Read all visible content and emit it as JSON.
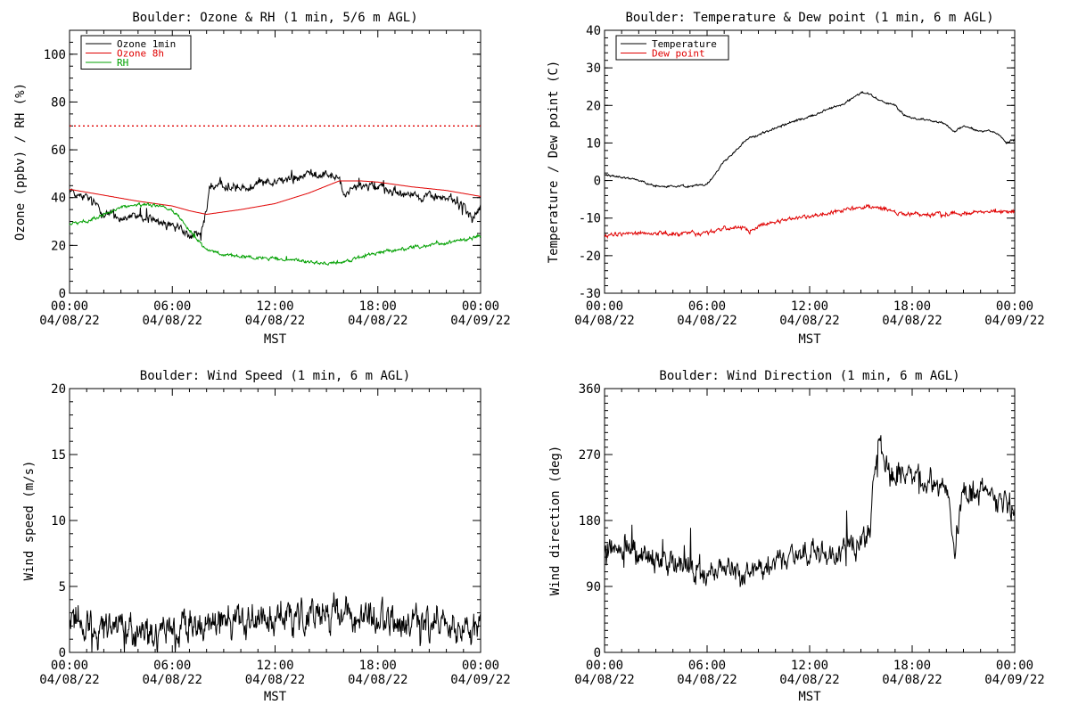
{
  "figure": {
    "x_axis_label": "MST"
  },
  "chart_data": [
    {
      "id": "ozone",
      "type": "line",
      "title": "Boulder: Ozone & RH (1 min, 5/6 m AGL)",
      "ylabel": "Ozone (ppbv) / RH (%)",
      "xlabel": "MST",
      "xlim": [
        "04/08/22 00:00",
        "04/09/22 00:00"
      ],
      "x_ticks": [
        {
          "time": "00:00",
          "date": "04/08/22"
        },
        {
          "time": "06:00",
          "date": "04/08/22"
        },
        {
          "time": "12:00",
          "date": "04/08/22"
        },
        {
          "time": "18:00",
          "date": "04/08/22"
        },
        {
          "time": "00:00",
          "date": "04/09/22"
        }
      ],
      "ylim": [
        0,
        110
      ],
      "y_ticks": [
        0,
        20,
        40,
        60,
        80,
        100
      ],
      "y_minor_step": 5,
      "legend": "top-left",
      "reference_line": {
        "y": 70,
        "color": "#e00000",
        "style": "dotted"
      },
      "series": [
        {
          "name": "Ozone 1min",
          "color": "#000000",
          "noise": 1.2,
          "spike_prob": 0.06,
          "spike_amp": 4,
          "points": [
            [
              "00:00",
              43
            ],
            [
              "01:00",
              40
            ],
            [
              "02:00",
              34
            ],
            [
              "03:00",
              31
            ],
            [
              "04:00",
              33
            ],
            [
              "05:00",
              30
            ],
            [
              "06:00",
              28
            ],
            [
              "06:30",
              27
            ],
            [
              "07:00",
              24
            ],
            [
              "07:40",
              25
            ],
            [
              "08:00",
              36
            ],
            [
              "08:10",
              44
            ],
            [
              "09:00",
              45
            ],
            [
              "10:00",
              44
            ],
            [
              "11:00",
              46
            ],
            [
              "12:00",
              47
            ],
            [
              "13:00",
              48
            ],
            [
              "14:00",
              50
            ],
            [
              "15:00",
              50
            ],
            [
              "15:45",
              48
            ],
            [
              "16:00",
              40
            ],
            [
              "16:30",
              44
            ],
            [
              "17:00",
              45
            ],
            [
              "18:00",
              44
            ],
            [
              "19:00",
              43
            ],
            [
              "20:00",
              42
            ],
            [
              "20:30",
              39
            ],
            [
              "21:00",
              41
            ],
            [
              "22:00",
              40
            ],
            [
              "23:00",
              37
            ],
            [
              "23:30",
              31
            ],
            [
              "24:00",
              36
            ]
          ]
        },
        {
          "name": "Ozone 8h",
          "color": "#e00000",
          "noise": 0,
          "spike_prob": 0,
          "spike_amp": 0,
          "points": [
            [
              "00:00",
              43.5
            ],
            [
              "02:00",
              41
            ],
            [
              "04:00",
              38.5
            ],
            [
              "06:00",
              36.5
            ],
            [
              "07:00",
              34.5
            ],
            [
              "08:00",
              33
            ],
            [
              "10:00",
              35
            ],
            [
              "12:00",
              37.5
            ],
            [
              "14:00",
              42
            ],
            [
              "15:45",
              47
            ],
            [
              "17:00",
              47
            ],
            [
              "18:00",
              46.5
            ],
            [
              "20:00",
              44.5
            ],
            [
              "22:00",
              43
            ],
            [
              "24:00",
              40.5
            ]
          ]
        },
        {
          "name": "RH",
          "color": "#00a000",
          "noise": 0.5,
          "spike_prob": 0.01,
          "spike_amp": 1.5,
          "points": [
            [
              "00:00",
              29
            ],
            [
              "01:00",
              30
            ],
            [
              "02:00",
              33
            ],
            [
              "03:00",
              36
            ],
            [
              "04:00",
              37
            ],
            [
              "05:00",
              37
            ],
            [
              "06:00",
              35
            ],
            [
              "06:45",
              29
            ],
            [
              "07:30",
              22
            ],
            [
              "08:00",
              18
            ],
            [
              "09:00",
              16
            ],
            [
              "11:00",
              15
            ],
            [
              "13:00",
              14
            ],
            [
              "15:00",
              12.5
            ],
            [
              "16:00",
              13
            ],
            [
              "17:00",
              15
            ],
            [
              "18:00",
              17
            ],
            [
              "20:00",
              19
            ],
            [
              "22:00",
              21
            ],
            [
              "23:00",
              22
            ],
            [
              "24:00",
              24
            ]
          ]
        }
      ]
    },
    {
      "id": "temperature",
      "type": "line",
      "title": "Boulder: Temperature & Dew point (1 min, 6 m AGL)",
      "ylabel": "Temperature / Dew point (C)",
      "xlabel": "MST",
      "xlim": [
        "04/08/22 00:00",
        "04/09/22 00:00"
      ],
      "x_ticks": [
        {
          "time": "00:00",
          "date": "04/08/22"
        },
        {
          "time": "06:00",
          "date": "04/08/22"
        },
        {
          "time": "12:00",
          "date": "04/08/22"
        },
        {
          "time": "18:00",
          "date": "04/08/22"
        },
        {
          "time": "00:00",
          "date": "04/09/22"
        }
      ],
      "ylim": [
        -30,
        40
      ],
      "y_ticks": [
        -30,
        -20,
        -10,
        0,
        10,
        20,
        30,
        40
      ],
      "y_minor_step": 2,
      "legend": "top-left",
      "series": [
        {
          "name": "Temperature",
          "color": "#000000",
          "noise": 0.2,
          "spike_prob": 0,
          "spike_amp": 0,
          "points": [
            [
              "00:00",
              1.5
            ],
            [
              "01:00",
              1
            ],
            [
              "02:00",
              0
            ],
            [
              "03:00",
              -1.5
            ],
            [
              "04:00",
              -1.5
            ],
            [
              "05:00",
              -1.5
            ],
            [
              "06:00",
              -1
            ],
            [
              "07:00",
              5
            ],
            [
              "08:00",
              9.5
            ],
            [
              "08:30",
              11.5
            ],
            [
              "09:00",
              12
            ],
            [
              "10:00",
              14
            ],
            [
              "12:00",
              17
            ],
            [
              "14:00",
              20.5
            ],
            [
              "15:00",
              23.5
            ],
            [
              "15:30",
              23
            ],
            [
              "16:00",
              21.5
            ],
            [
              "17:00",
              20
            ],
            [
              "17:30",
              17.5
            ],
            [
              "18:00",
              16.5
            ],
            [
              "19:00",
              16
            ],
            [
              "20:00",
              15
            ],
            [
              "20:30",
              13
            ],
            [
              "21:00",
              14.5
            ],
            [
              "22:00",
              13
            ],
            [
              "22:30",
              13.5
            ],
            [
              "23:00",
              12.5
            ],
            [
              "23:30",
              10
            ],
            [
              "24:00",
              11
            ]
          ]
        },
        {
          "name": "Dew point",
          "color": "#e00000",
          "noise": 0.35,
          "spike_prob": 0.02,
          "spike_amp": 1,
          "points": [
            [
              "00:00",
              -14.5
            ],
            [
              "02:00",
              -14
            ],
            [
              "04:00",
              -14
            ],
            [
              "06:00",
              -14
            ],
            [
              "06:30",
              -13.5
            ],
            [
              "07:00",
              -12.5
            ],
            [
              "08:00",
              -12.5
            ],
            [
              "08:30",
              -13.5
            ],
            [
              "09:00",
              -12
            ],
            [
              "10:00",
              -11
            ],
            [
              "12:00",
              -9.5
            ],
            [
              "14:00",
              -8
            ],
            [
              "15:00",
              -7
            ],
            [
              "16:00",
              -7
            ],
            [
              "17:00",
              -8.5
            ],
            [
              "18:00",
              -9
            ],
            [
              "20:00",
              -9
            ],
            [
              "22:00",
              -8.5
            ],
            [
              "24:00",
              -8.5
            ]
          ]
        }
      ]
    },
    {
      "id": "wind-speed",
      "type": "line",
      "title": "Boulder: Wind Speed (1 min, 6 m AGL)",
      "ylabel": "Wind speed (m/s)",
      "xlabel": "MST",
      "xlim": [
        "04/08/22 00:00",
        "04/09/22 00:00"
      ],
      "x_ticks": [
        {
          "time": "00:00",
          "date": "04/08/22"
        },
        {
          "time": "06:00",
          "date": "04/08/22"
        },
        {
          "time": "12:00",
          "date": "04/08/22"
        },
        {
          "time": "18:00",
          "date": "04/08/22"
        },
        {
          "time": "00:00",
          "date": "04/09/22"
        }
      ],
      "ylim": [
        0,
        20
      ],
      "y_ticks": [
        0,
        5,
        10,
        15,
        20
      ],
      "y_minor_step": 1,
      "series": [
        {
          "name": "",
          "color": "#000000",
          "noise": 0.9,
          "spike_prob": 0.03,
          "spike_amp": 2,
          "points": [
            [
              "00:00",
              2.6
            ],
            [
              "02:00",
              2
            ],
            [
              "03:00",
              1.5
            ],
            [
              "05:00",
              1.2
            ],
            [
              "06:00",
              1.6
            ],
            [
              "08:00",
              2
            ],
            [
              "10:00",
              2.5
            ],
            [
              "12:00",
              2.8
            ],
            [
              "14:00",
              2.6
            ],
            [
              "16:00",
              2.8
            ],
            [
              "18:00",
              2.5
            ],
            [
              "20:00",
              2.4
            ],
            [
              "21:00",
              2.2
            ],
            [
              "22:00",
              1.8
            ],
            [
              "24:00",
              1.5
            ]
          ]
        }
      ]
    },
    {
      "id": "wind-direction",
      "type": "line",
      "title": "Boulder: Wind Direction (1 min, 6 m AGL)",
      "ylabel": "Wind direction (deg)",
      "xlabel": "MST",
      "xlim": [
        "04/08/22 00:00",
        "04/09/22 00:00"
      ],
      "x_ticks": [
        {
          "time": "00:00",
          "date": "04/08/22"
        },
        {
          "time": "06:00",
          "date": "04/08/22"
        },
        {
          "time": "12:00",
          "date": "04/08/22"
        },
        {
          "time": "18:00",
          "date": "04/08/22"
        },
        {
          "time": "00:00",
          "date": "04/09/22"
        }
      ],
      "ylim": [
        0,
        360
      ],
      "y_ticks": [
        0,
        90,
        180,
        270,
        360
      ],
      "y_minor_step": 10,
      "series": [
        {
          "name": "",
          "color": "#000000",
          "noise": 12,
          "spike_prob": 0.04,
          "spike_amp": 45,
          "points": [
            [
              "00:00",
              145
            ],
            [
              "01:00",
              140
            ],
            [
              "02:00",
              135
            ],
            [
              "03:00",
              125
            ],
            [
              "05:00",
              118
            ],
            [
              "07:00",
              112
            ],
            [
              "08:00",
              110
            ],
            [
              "09:00",
              118
            ],
            [
              "11:00",
              128
            ],
            [
              "13:00",
              135
            ],
            [
              "14:00",
              140
            ],
            [
              "15:00",
              145
            ],
            [
              "15:30",
              160
            ],
            [
              "15:50",
              250
            ],
            [
              "16:00",
              290
            ],
            [
              "16:30",
              255
            ],
            [
              "17:00",
              240
            ],
            [
              "18:00",
              235
            ],
            [
              "19:00",
              235
            ],
            [
              "20:00",
              230
            ],
            [
              "20:30",
              140
            ],
            [
              "21:00",
              220
            ],
            [
              "22:00",
              215
            ],
            [
              "23:00",
              210
            ],
            [
              "24:00",
              185
            ]
          ]
        }
      ]
    }
  ]
}
